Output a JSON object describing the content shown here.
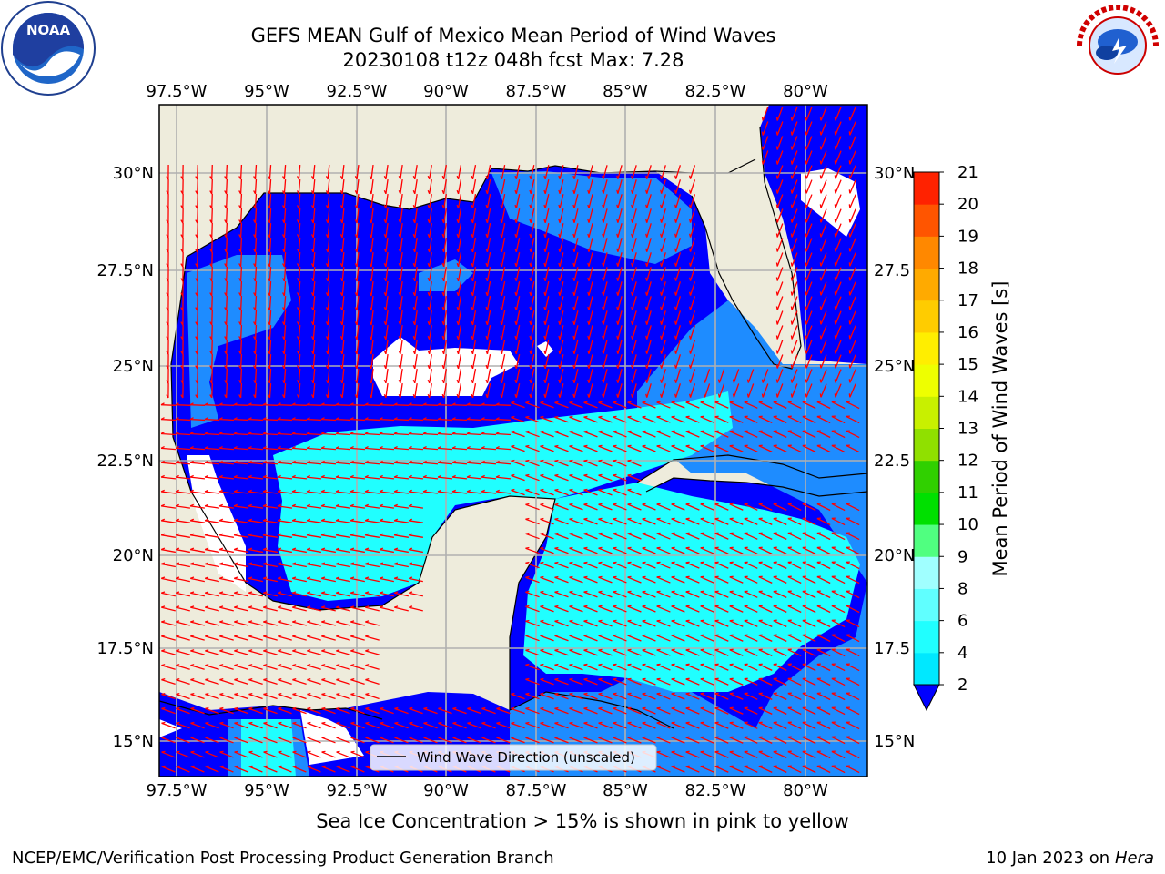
{
  "title_line1": "GEFS MEAN Gulf of Mexico Mean Period of Wind Waves",
  "title_line2": "20230108 t12z 048h fcst   Max: 7.28",
  "lon_labels": [
    "97.5°W",
    "95°W",
    "92.5°W",
    "90°W",
    "87.5°W",
    "85°W",
    "82.5°W",
    "80°W"
  ],
  "lat_labels_left": [
    "30°N",
    "27.5°N",
    "25°N",
    "22.5°N",
    "20°N",
    "17.5°N",
    "15°N"
  ],
  "lat_labels_right": [
    "30°N",
    "27.5",
    "25°N",
    "22.5",
    "20°N",
    "17.5",
    "15°N"
  ],
  "legend_label": "Wind Wave Direction (unscaled)",
  "colorbar": {
    "label": "Mean Period of Wind Waves [s]",
    "ticks": [
      "2",
      "4",
      "6",
      "8",
      "9",
      "10",
      "11",
      "12",
      "13",
      "14",
      "15",
      "16",
      "17",
      "18",
      "19",
      "20",
      "21"
    ],
    "colors": [
      "#0050ff",
      "#00e8ff",
      "#20ffff",
      "#60ffff",
      "#a0ffff",
      "#50ff80",
      "#00e000",
      "#30d000",
      "#90e000",
      "#c8f000",
      "#eeff00",
      "#ffee00",
      "#ffcc00",
      "#ffaa00",
      "#ff8800",
      "#ff5500",
      "#ff2200",
      "#ff0000"
    ],
    "under_color": "#0000ff"
  },
  "footer_note": "Sea Ice Concentration > 15% is shown in pink to yellow",
  "footer_credit": "NCEP/EMC/Verification Post Processing Product Generation Branch",
  "footer_date": "10 Jan 2023 on",
  "footer_machine": "Hera",
  "logos": {
    "left": "noaa-logo",
    "right": "nws-logo"
  },
  "colors": {
    "land": "#eeecdc",
    "ocean_low": "#0000ff",
    "ocean_mid": "#1e8cff",
    "ocean_high": "#20ffff",
    "arrow": "#ff0000",
    "grid": "#b0b0b0"
  }
}
